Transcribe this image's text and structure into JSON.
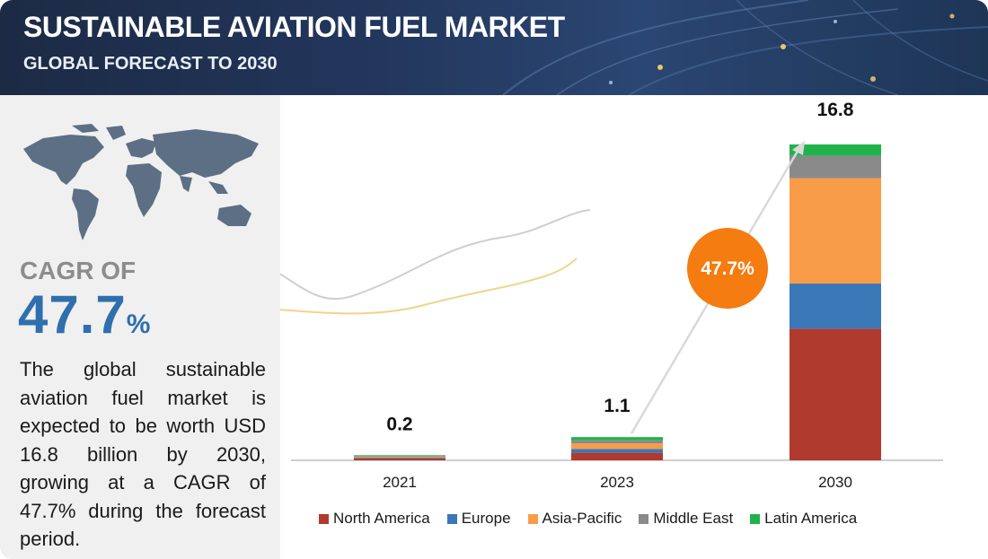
{
  "header": {
    "title": "SUSTAINABLE AVIATION FUEL MARKET",
    "subtitle": "GLOBAL FORECAST TO 2030"
  },
  "left_panel": {
    "cagr_label": "CAGR OF",
    "cagr_value": "47.7",
    "cagr_unit": "%",
    "description": "The global sustainable aviation fuel market is expected to be worth USD 16.8 billion by 2030, growing at a CAGR of 47.7% during the forecast period."
  },
  "colors": {
    "North America": "#b03a2e",
    "Europe": "#3a78b8",
    "Asia-Pacific": "#f89c48",
    "Middle East": "#8a8a8a",
    "Latin America": "#22b24c",
    "bubble": "#f47c10",
    "accent_blue": "#2f6fad"
  },
  "chart_data": {
    "type": "bar",
    "stacked": true,
    "title": "SUSTAINABLE AVIATION FUEL MARKET",
    "subtitle": "GLOBAL FORECAST TO 2030",
    "categories": [
      "2021",
      "2023",
      "2030"
    ],
    "totals": [
      0.2,
      1.1,
      16.8
    ],
    "total_labels": [
      "0.2",
      "1.1",
      "16.8"
    ],
    "series": [
      {
        "name": "North America",
        "values": [
          0.1,
          0.4,
          7.0
        ]
      },
      {
        "name": "Europe",
        "values": [
          0.02,
          0.2,
          2.4
        ]
      },
      {
        "name": "Asia-Pacific",
        "values": [
          0.05,
          0.3,
          5.6
        ]
      },
      {
        "name": "Middle East",
        "values": [
          0.02,
          0.15,
          1.2
        ]
      },
      {
        "name": "Latin America",
        "values": [
          0.01,
          0.05,
          0.6
        ]
      }
    ],
    "ylim": [
      0,
      16.8
    ],
    "xlabel": "",
    "ylabel": "",
    "grid": false,
    "legend_position": "bottom",
    "annotation": {
      "text": "47.7%",
      "meaning": "CAGR"
    }
  }
}
